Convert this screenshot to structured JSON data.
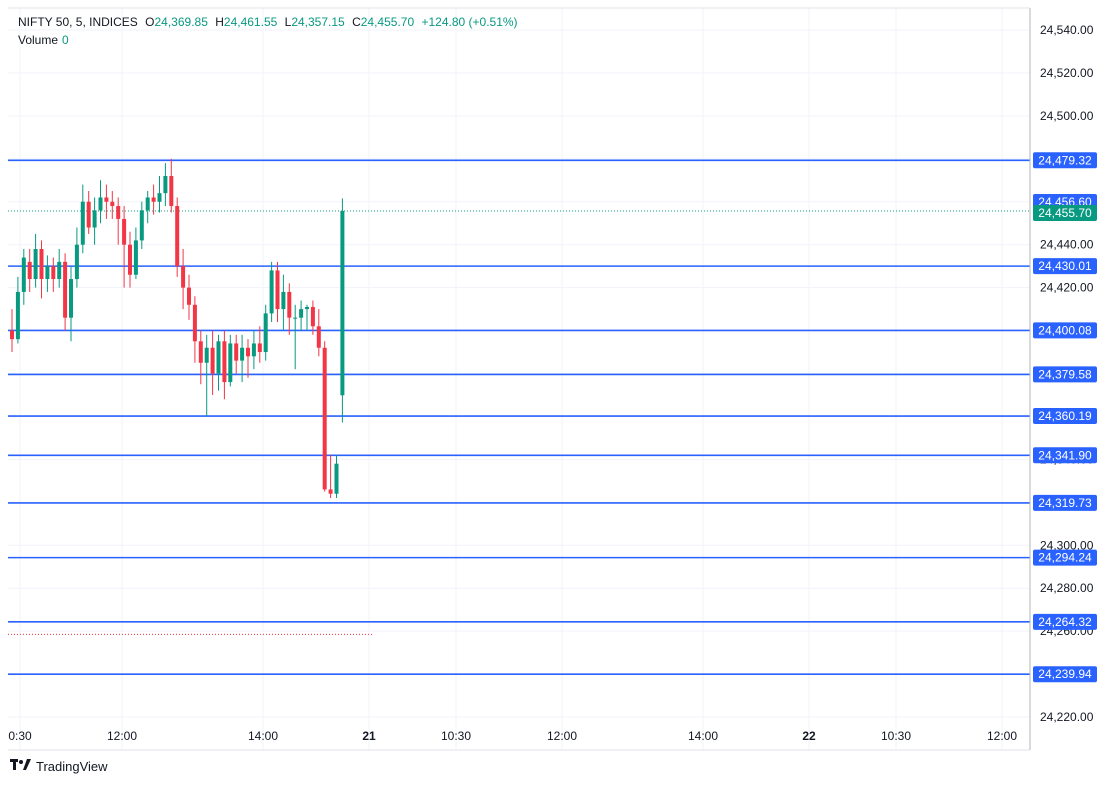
{
  "header": {
    "symbol": "NIFTY 50, 5, INDICES",
    "o_label": "O",
    "o_value": "24,369.85",
    "h_label": "H",
    "h_value": "24,461.55",
    "l_label": "L",
    "l_value": "24,357.15",
    "c_label": "C",
    "c_value": "24,455.70",
    "change": "+124.80 (+0.51%)",
    "volume_label": "Volume",
    "volume_value": "0"
  },
  "brand": {
    "name": "TradingView",
    "icon": "tradingview-logo-icon"
  },
  "colors": {
    "up": "#089981",
    "down": "#f23645",
    "level": "#2962ff",
    "grid": "#f0f3fa"
  },
  "chart_data": {
    "type": "candlestick",
    "y_range": [
      24215,
      24548
    ],
    "y_ticks": [
      "24,220.00",
      "24,240.00",
      "24,260.00",
      "24,280.00",
      "24,300.00",
      "24,320.00",
      "24,340.00",
      "24,360.00",
      "24,380.00",
      "24,400.00",
      "24,420.00",
      "24,440.00",
      "24,460.00",
      "24,480.00",
      "24,500.00",
      "24,520.00",
      "24,540.00"
    ],
    "x_ticks": [
      "0:30",
      "12:00",
      "14:00",
      "21",
      "10:30",
      "12:00",
      "14:00",
      "22",
      "10:30",
      "12:00"
    ],
    "last_price": "24,455.70",
    "crosshair_price": "24,456.60",
    "levels": [
      {
        "value": 24479.32,
        "label": "24,479.32"
      },
      {
        "value": 24430.01,
        "label": "24,430.01"
      },
      {
        "value": 24400.08,
        "label": "24,400.08"
      },
      {
        "value": 24379.58,
        "label": "24,379.58"
      },
      {
        "value": 24360.19,
        "label": "24,360.19"
      },
      {
        "value": 24341.9,
        "label": "24,341.90"
      },
      {
        "value": 24319.73,
        "label": "24,319.73"
      },
      {
        "value": 24294.24,
        "label": "24,294.24"
      },
      {
        "value": 24264.32,
        "label": "24,264.32"
      },
      {
        "value": 24239.94,
        "label": "24,239.94"
      }
    ],
    "candles": [
      [
        24400,
        24410,
        24390,
        24396
      ],
      [
        24396,
        24425,
        24394,
        24418
      ],
      [
        24418,
        24438,
        24412,
        24434
      ],
      [
        24432,
        24438,
        24418,
        24424
      ],
      [
        24424,
        24445,
        24420,
        24438
      ],
      [
        24438,
        24442,
        24415,
        24424
      ],
      [
        24424,
        24435,
        24418,
        24430
      ],
      [
        24430,
        24434,
        24418,
        24424
      ],
      [
        24424,
        24438,
        24420,
        24432
      ],
      [
        24432,
        24436,
        24400,
        24406
      ],
      [
        24406,
        24430,
        24395,
        24424
      ],
      [
        24424,
        24448,
        24420,
        24440
      ],
      [
        24440,
        24468,
        24436,
        24460
      ],
      [
        24460,
        24465,
        24445,
        24448
      ],
      [
        24448,
        24462,
        24440,
        24456
      ],
      [
        24456,
        24470,
        24450,
        24462
      ],
      [
        24462,
        24468,
        24452,
        24460
      ],
      [
        24460,
        24465,
        24452,
        24458
      ],
      [
        24458,
        24462,
        24440,
        24452
      ],
      [
        24452,
        24458,
        24420,
        24440
      ],
      [
        24440,
        24446,
        24420,
        24426
      ],
      [
        24426,
        24448,
        24424,
        24442
      ],
      [
        24442,
        24460,
        24438,
        24456
      ],
      [
        24456,
        24465,
        24450,
        24462
      ],
      [
        24462,
        24468,
        24454,
        24460
      ],
      [
        24460,
        24472,
        24455,
        24464
      ],
      [
        24464,
        24478,
        24458,
        24472
      ],
      [
        24472,
        24480,
        24455,
        24458
      ],
      [
        24458,
        24462,
        24425,
        24430
      ],
      [
        24430,
        24438,
        24410,
        24420
      ],
      [
        24420,
        24426,
        24405,
        24412
      ],
      [
        24412,
        24416,
        24385,
        24395
      ],
      [
        24395,
        24400,
        24375,
        24385
      ],
      [
        24385,
        24398,
        24360,
        24392
      ],
      [
        24392,
        24400,
        24370,
        24380
      ],
      [
        24380,
        24398,
        24372,
        24395
      ],
      [
        24395,
        24400,
        24368,
        24376
      ],
      [
        24376,
        24398,
        24374,
        24394
      ],
      [
        24394,
        24398,
        24380,
        24386
      ],
      [
        24386,
        24398,
        24376,
        24392
      ],
      [
        24392,
        24396,
        24378,
        24388
      ],
      [
        24388,
        24400,
        24382,
        24394
      ],
      [
        24394,
        24402,
        24385,
        24390
      ],
      [
        24390,
        24412,
        24386,
        24408
      ],
      [
        24408,
        24432,
        24404,
        24428
      ],
      [
        24428,
        24432,
        24404,
        24410
      ],
      [
        24410,
        24426,
        24400,
        24418
      ],
      [
        24418,
        24422,
        24398,
        24406
      ],
      [
        24406,
        24412,
        24382,
        24406
      ],
      [
        24406,
        24414,
        24400,
        24410
      ],
      [
        24410,
        24412,
        24400,
        24411
      ],
      [
        24411,
        24414,
        24398,
        24402
      ],
      [
        24402,
        24410,
        24388,
        24392
      ],
      [
        24392,
        24395,
        24325,
        24326
      ],
      [
        24326,
        24342,
        24322,
        24324
      ],
      [
        24324,
        24342,
        24322,
        24338
      ],
      [
        24369.85,
        24461.55,
        24357.15,
        24455.7
      ]
    ]
  }
}
